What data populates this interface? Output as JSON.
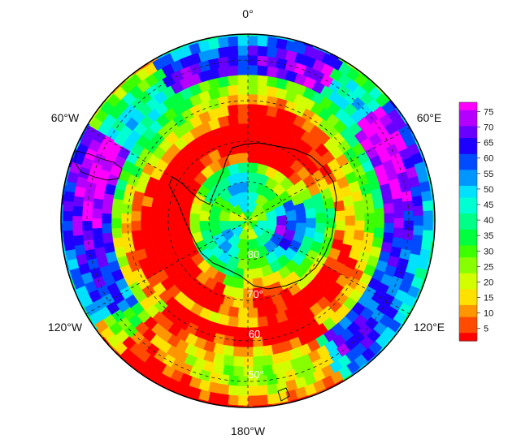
{
  "map": {
    "projection": "south-polar-stereographic",
    "grid_style": "dashed",
    "longitude_labels": {
      "top": "0°",
      "upper_left": "60°W",
      "upper_right": "60°E",
      "lower_left": "120°W",
      "lower_right": "120°E",
      "bottom": "180°W"
    },
    "latitude_labels": [
      "80",
      "70°",
      "60",
      "50°"
    ]
  },
  "colorbar": {
    "ticks": [
      "75",
      "70",
      "65",
      "60",
      "55",
      "50",
      "45",
      "40",
      "35",
      "30",
      "25",
      "20",
      "15",
      "10",
      "5"
    ],
    "range": [
      1,
      78
    ],
    "colormap": [
      "#ff0000",
      "#ff4b00",
      "#ff9600",
      "#ffe100",
      "#d2ff00",
      "#87ff00",
      "#3cff00",
      "#00ff3c",
      "#00ff87",
      "#00ffd2",
      "#00e1ff",
      "#0096ff",
      "#004bff",
      "#1e00ff",
      "#6900ff",
      "#b400ff",
      "#ff00ff"
    ]
  }
}
